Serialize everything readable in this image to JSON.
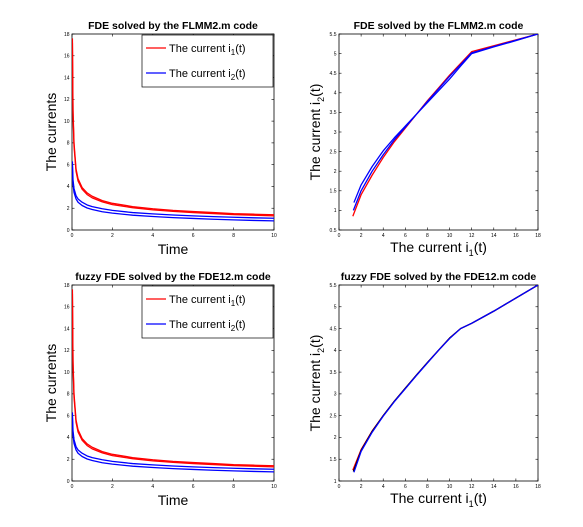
{
  "chart_data": [
    {
      "type": "line",
      "title": "FDE solved by the FLMM2.m code",
      "xlabel": "Time",
      "ylabel": "The currents",
      "xlim": [
        0,
        10
      ],
      "ylim": [
        0,
        18
      ],
      "xticks": [
        0,
        2,
        4,
        6,
        8,
        10
      ],
      "yticks": [
        0,
        2,
        4,
        6,
        8,
        10,
        12,
        14,
        16,
        18
      ],
      "grid": false,
      "legend": "top-right",
      "legend_entries": [
        {
          "main": "The current i",
          "sub": "1",
          "tail": "(t)",
          "color": "#ff0000"
        },
        {
          "main": "The current i",
          "sub": "2",
          "tail": "(t)",
          "color": "#0000ff"
        }
      ],
      "series": [
        {
          "name": "The current i1(t)",
          "color": "#ff0000",
          "x": [
            0.02,
            0.05,
            0.1,
            0.2,
            0.3,
            0.5,
            0.75,
            1,
            1.5,
            2,
            3,
            4,
            5,
            6,
            7,
            8,
            9,
            10
          ],
          "y": [
            17.6,
            11.0,
            8.0,
            5.6,
            4.7,
            3.9,
            3.4,
            3.1,
            2.7,
            2.45,
            2.15,
            1.95,
            1.8,
            1.7,
            1.6,
            1.5,
            1.45,
            1.4
          ]
        },
        {
          "name": "",
          "color": "#ff0000",
          "x": [
            0.02,
            0.05,
            0.1,
            0.2,
            0.3,
            0.5,
            0.75,
            1,
            1.5,
            2,
            3,
            4,
            5,
            6,
            7,
            8,
            9,
            10
          ],
          "y": [
            17.2,
            10.6,
            7.7,
            5.4,
            4.5,
            3.75,
            3.25,
            2.95,
            2.58,
            2.33,
            2.05,
            1.85,
            1.71,
            1.6,
            1.51,
            1.42,
            1.36,
            1.3
          ]
        },
        {
          "name": "The current i2(t)",
          "color": "#0000ff",
          "x": [
            0.02,
            0.05,
            0.1,
            0.2,
            0.3,
            0.5,
            0.75,
            1,
            1.5,
            2,
            3,
            4,
            5,
            6,
            7,
            8,
            9,
            10
          ],
          "y": [
            6.3,
            4.6,
            3.8,
            3.15,
            2.85,
            2.55,
            2.3,
            2.15,
            1.95,
            1.8,
            1.6,
            1.48,
            1.38,
            1.3,
            1.23,
            1.17,
            1.12,
            1.08
          ]
        },
        {
          "name": "",
          "color": "#0000ff",
          "x": [
            0.02,
            0.05,
            0.1,
            0.2,
            0.3,
            0.5,
            0.75,
            1,
            1.5,
            2,
            3,
            4,
            5,
            6,
            7,
            8,
            9,
            10
          ],
          "y": [
            5.8,
            4.2,
            3.45,
            2.85,
            2.55,
            2.25,
            2.02,
            1.88,
            1.68,
            1.55,
            1.36,
            1.24,
            1.14,
            1.06,
            0.99,
            0.93,
            0.88,
            0.84
          ]
        }
      ]
    },
    {
      "type": "line",
      "title": "FDE solved by the FLMM2.m code",
      "xlabel": {
        "main": "The current i",
        "sub": "1",
        "tail": "(t)"
      },
      "ylabel": {
        "main": "The current i",
        "sub": "2",
        "tail": "(t)"
      },
      "xlim": [
        0,
        18
      ],
      "ylim": [
        0.5,
        5.5
      ],
      "xticks": [
        0,
        2,
        4,
        6,
        8,
        10,
        12,
        14,
        16,
        18
      ],
      "yticks": [
        0.5,
        1,
        1.5,
        2,
        2.5,
        3,
        3.5,
        4,
        4.5,
        5,
        5.5
      ],
      "grid": false,
      "legend": "none",
      "series": [
        {
          "name": "",
          "color": "#ff0000",
          "x": [
            1.25,
            2,
            3,
            4,
            5,
            6,
            7,
            8,
            9,
            10,
            11,
            12,
            14,
            16,
            18
          ],
          "y": [
            0.85,
            1.4,
            1.9,
            2.35,
            2.75,
            3.1,
            3.45,
            3.8,
            4.12,
            4.45,
            4.75,
            5.05,
            5.2,
            5.35,
            5.5
          ]
        },
        {
          "name": "",
          "color": "#0000ff",
          "x": [
            1.35,
            2,
            3,
            4,
            5,
            6,
            7,
            8,
            9,
            10,
            11,
            12,
            14,
            16,
            18
          ],
          "y": [
            1.2,
            1.65,
            2.12,
            2.52,
            2.85,
            3.15,
            3.45,
            3.75,
            4.05,
            4.35,
            4.68,
            5.0,
            5.17,
            5.33,
            5.5
          ]
        },
        {
          "name": "",
          "color": "#0000ff",
          "x": [
            1.3,
            2,
            3,
            4,
            5,
            6,
            7,
            8,
            9,
            10,
            11,
            12,
            14,
            16,
            18
          ],
          "y": [
            1.0,
            1.5,
            2.0,
            2.42,
            2.8,
            3.12,
            3.45,
            3.78,
            4.1,
            4.42,
            4.72,
            5.02,
            5.18,
            5.34,
            5.5
          ]
        }
      ]
    },
    {
      "type": "line",
      "title": "fuzzy FDE solved by the FDE12.m code",
      "xlabel": "Time",
      "ylabel": "The currents",
      "xlim": [
        0,
        10
      ],
      "ylim": [
        0,
        18
      ],
      "xticks": [
        0,
        2,
        4,
        6,
        8,
        10
      ],
      "yticks": [
        0,
        2,
        4,
        6,
        8,
        10,
        12,
        14,
        16,
        18
      ],
      "grid": false,
      "legend": "top-right",
      "legend_entries": [
        {
          "main": "The current i",
          "sub": "1",
          "tail": "(t)",
          "color": "#ff0000"
        },
        {
          "main": "The current i",
          "sub": "2",
          "tail": "(t)",
          "color": "#0000ff"
        }
      ],
      "series": [
        {
          "name": "The current i1(t)",
          "color": "#ff0000",
          "x": [
            0.02,
            0.05,
            0.1,
            0.2,
            0.3,
            0.5,
            0.75,
            1,
            1.5,
            2,
            3,
            4,
            5,
            6,
            7,
            8,
            9,
            10
          ],
          "y": [
            17.6,
            11.0,
            8.0,
            5.6,
            4.7,
            3.9,
            3.4,
            3.1,
            2.7,
            2.45,
            2.15,
            1.95,
            1.8,
            1.7,
            1.6,
            1.5,
            1.45,
            1.4
          ]
        },
        {
          "name": "",
          "color": "#ff0000",
          "x": [
            0.02,
            0.05,
            0.1,
            0.2,
            0.3,
            0.5,
            0.75,
            1,
            1.5,
            2,
            3,
            4,
            5,
            6,
            7,
            8,
            9,
            10
          ],
          "y": [
            17.2,
            10.6,
            7.7,
            5.4,
            4.5,
            3.75,
            3.25,
            2.95,
            2.58,
            2.33,
            2.05,
            1.85,
            1.71,
            1.6,
            1.51,
            1.42,
            1.36,
            1.3
          ]
        },
        {
          "name": "The current i2(t)",
          "color": "#0000ff",
          "x": [
            0.02,
            0.05,
            0.1,
            0.2,
            0.3,
            0.5,
            0.75,
            1,
            1.5,
            2,
            3,
            4,
            5,
            6,
            7,
            8,
            9,
            10
          ],
          "y": [
            6.3,
            4.6,
            3.8,
            3.15,
            2.85,
            2.55,
            2.3,
            2.15,
            1.95,
            1.8,
            1.6,
            1.48,
            1.38,
            1.3,
            1.23,
            1.17,
            1.12,
            1.08
          ]
        },
        {
          "name": "",
          "color": "#0000ff",
          "x": [
            0.02,
            0.05,
            0.1,
            0.2,
            0.3,
            0.5,
            0.75,
            1,
            1.5,
            2,
            3,
            4,
            5,
            6,
            7,
            8,
            9,
            10
          ],
          "y": [
            5.8,
            4.2,
            3.45,
            2.85,
            2.55,
            2.25,
            2.02,
            1.88,
            1.68,
            1.55,
            1.36,
            1.24,
            1.14,
            1.06,
            0.99,
            0.93,
            0.88,
            0.84
          ]
        }
      ]
    },
    {
      "type": "line",
      "title": "fuzzy FDE solved by the FDE12.m code",
      "xlabel": {
        "main": "The current i",
        "sub": "1",
        "tail": "(t)"
      },
      "ylabel": {
        "main": "The current i",
        "sub": "2",
        "tail": "(t)"
      },
      "xlim": [
        0,
        18
      ],
      "ylim": [
        1,
        5.5
      ],
      "xticks": [
        0,
        2,
        4,
        6,
        8,
        10,
        12,
        14,
        16,
        18
      ],
      "yticks": [
        1,
        1.5,
        2,
        2.5,
        3,
        3.5,
        4,
        4.5,
        5,
        5.5
      ],
      "grid": false,
      "legend": "none",
      "series": [
        {
          "name": "",
          "color": "#ff0000",
          "x": [
            1.25,
            2,
            3,
            4,
            5,
            6,
            7,
            8,
            9,
            10,
            11,
            12,
            14,
            16,
            18
          ],
          "y": [
            1.25,
            1.72,
            2.15,
            2.5,
            2.83,
            3.13,
            3.43,
            3.72,
            4.0,
            4.28,
            4.5,
            4.62,
            4.9,
            5.2,
            5.5
          ]
        },
        {
          "name": "",
          "color": "#000000",
          "x": [
            1.3,
            2,
            3,
            4,
            5,
            6,
            7,
            8,
            9,
            10,
            11,
            12,
            14,
            16,
            18
          ],
          "y": [
            1.22,
            1.7,
            2.14,
            2.5,
            2.83,
            3.13,
            3.43,
            3.72,
            4.0,
            4.28,
            4.5,
            4.62,
            4.9,
            5.2,
            5.5
          ]
        },
        {
          "name": "",
          "color": "#0000ff",
          "x": [
            1.35,
            2,
            3,
            4,
            5,
            6,
            7,
            8,
            9,
            10,
            11,
            12,
            14,
            16,
            18
          ],
          "y": [
            1.2,
            1.68,
            2.12,
            2.49,
            2.82,
            3.12,
            3.42,
            3.71,
            4.0,
            4.27,
            4.5,
            4.62,
            4.9,
            5.2,
            5.5
          ]
        }
      ]
    }
  ]
}
